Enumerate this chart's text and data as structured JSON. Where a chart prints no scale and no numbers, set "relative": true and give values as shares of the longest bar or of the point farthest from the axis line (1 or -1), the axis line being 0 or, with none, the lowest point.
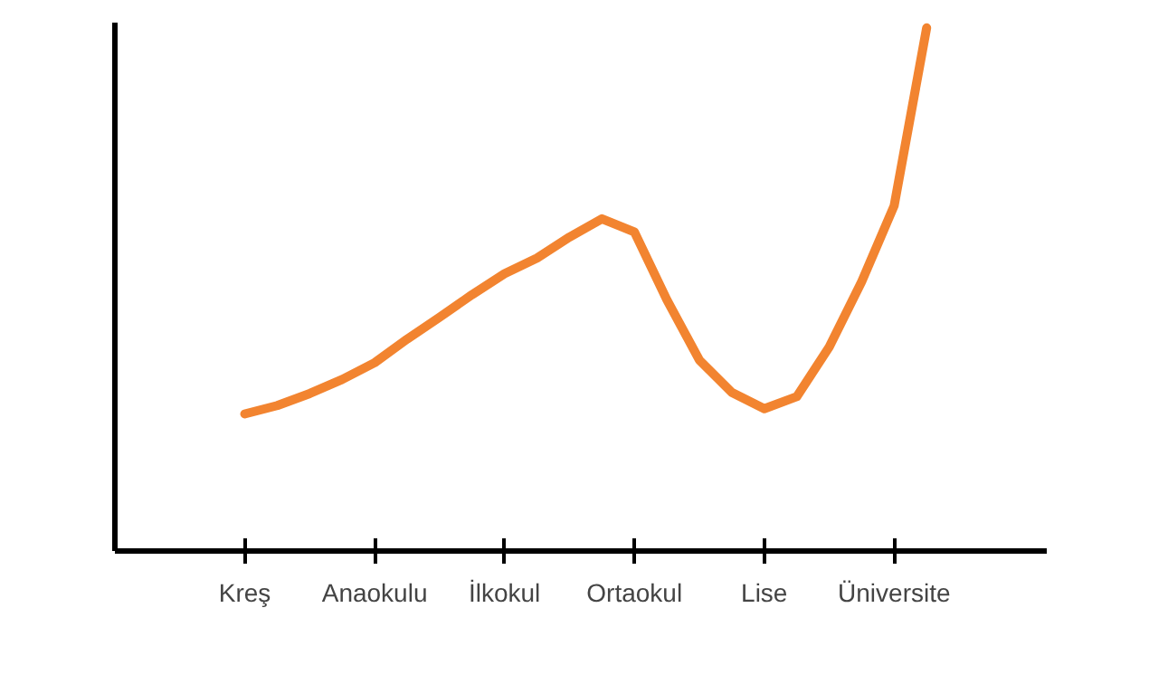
{
  "chart_data": {
    "type": "line",
    "relative": true,
    "color": "#f28430",
    "categories": [
      "Kreş",
      null,
      null,
      null,
      "Anaokulu",
      null,
      null,
      null,
      "İlkokul",
      null,
      null,
      null,
      "Ortaokul",
      null,
      null,
      null,
      "Lise",
      null,
      null,
      null,
      "Üniversite",
      null
    ],
    "values": [
      0.262,
      0.278,
      0.301,
      0.328,
      0.36,
      0.405,
      0.447,
      0.49,
      0.53,
      0.56,
      0.6,
      0.635,
      0.61,
      0.48,
      0.365,
      0.303,
      0.272,
      0.295,
      0.39,
      0.515,
      0.66,
      1.0
    ]
  }
}
